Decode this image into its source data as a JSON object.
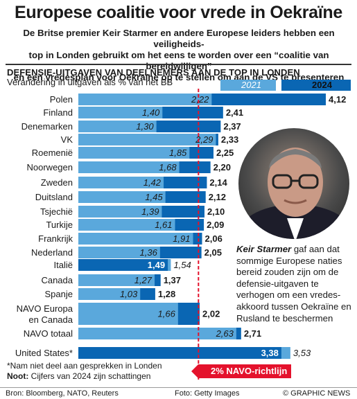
{
  "header": {
    "title": "Europese coalitie voor vrede in Oekraïne",
    "intro_lines": [
      "De Britse premier Keir Starmer en andere Europese leiders hebben een veiligheids-",
      "top in Londen gebruikt om het eens te worden over een “coalitie van bereidwilligen”",
      "en een vredesplan voor Oekraïne op te stellen om aan de VS te presenteren"
    ]
  },
  "chart_data": {
    "type": "bar",
    "orientation": "horizontal",
    "title": "DEFENSIE-UITGAVEN VAN DEELNEMERS AAN DE TOP IN LONDEN",
    "subtitle": "Verandering in uitgaven als % van het BB",
    "categories": [
      "Polen",
      "Finland",
      "Denemarken",
      "VK",
      "Roemenië",
      "Noorwegen",
      "Zweden",
      "Duitsland",
      "Tsjechië",
      "Turkije",
      "Frankrijk",
      "Nederland",
      "Italië",
      "Canada",
      "Spanje",
      "NAVO Europa en Canada",
      "NAVO totaal",
      "United States*"
    ],
    "series": [
      {
        "name": "2021",
        "color": "#5aa8dc",
        "values": [
          2.22,
          1.4,
          1.3,
          2.29,
          1.85,
          1.68,
          1.42,
          1.45,
          1.39,
          1.61,
          1.91,
          1.36,
          1.54,
          1.27,
          1.03,
          1.66,
          2.63,
          3.53
        ]
      },
      {
        "name": "2024",
        "color": "#0a66b3",
        "values": [
          4.12,
          2.41,
          2.37,
          2.33,
          2.25,
          2.2,
          2.14,
          2.12,
          2.1,
          2.09,
          2.06,
          2.05,
          1.49,
          1.37,
          1.28,
          2.02,
          2.71,
          3.38
        ]
      }
    ],
    "reference_line": {
      "value": 2.0,
      "label": "2% NAVO-richtlijn",
      "color": "#e4122c"
    },
    "xlim": [
      0,
      4.12
    ]
  },
  "photo": {
    "credit": "Foto: Getty Images"
  },
  "caption": {
    "name": "Keir Starmer",
    "text": " gaf aan dat sommige Europese naties bereid zouden zijn om de defensie-uitgaven te verhogen om een vredes-akkoord tussen Oekraïne en Rusland te beschermen"
  },
  "footnotes": {
    "note1": "*Nam niet deel aan gesprekken in Londen",
    "note2_label": "Noot:",
    "note2_text": " Cijfers van 2024 zijn schattingen"
  },
  "footer": {
    "source": "Bron: Bloomberg, NATO, Reuters",
    "credit": "Foto: Getty Images",
    "copyright": "© GRAPHIC NEWS"
  },
  "colors": {
    "light": "#5aa8dc",
    "dark": "#0a66b3",
    "red": "#e4122c"
  }
}
